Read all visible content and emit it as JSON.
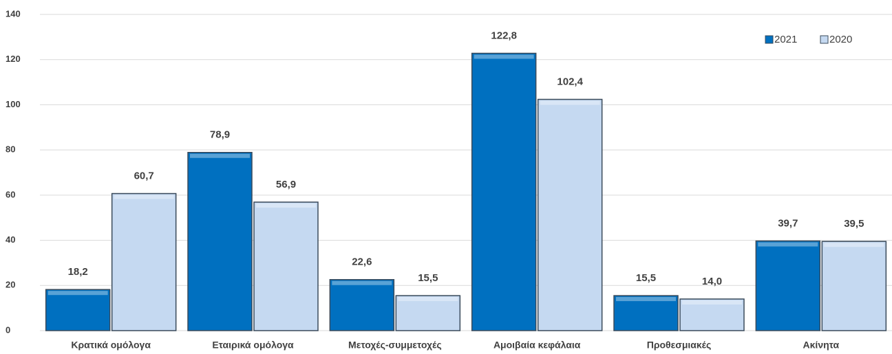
{
  "chart_data": {
    "type": "bar",
    "categories": [
      "Κρατικά ομόλογα",
      "Εταιρικά ομόλογα",
      "Μετοχές-συμμετοχές",
      "Αμοιβαία κεφάλαια",
      "Προθεσμιακές",
      "Ακίνητα"
    ],
    "series": [
      {
        "name": "2021",
        "color": "#0070c0",
        "values": [
          18.2,
          78.9,
          22.6,
          122.8,
          15.5,
          39.7
        ],
        "value_labels": [
          "18,2",
          "78,9",
          "22,6",
          "122,8",
          "15,5",
          "39,7"
        ]
      },
      {
        "name": "2020",
        "color": "#c5d9f1",
        "values": [
          60.7,
          56.9,
          15.5,
          102.4,
          14.0,
          39.5
        ],
        "value_labels": [
          "60,7",
          "56,9",
          "15,5",
          "102,4",
          "14,0",
          "39,5"
        ]
      }
    ],
    "ylim": [
      0,
      140
    ],
    "yticks": [
      0,
      20,
      40,
      60,
      80,
      100,
      120,
      140
    ],
    "grid": true,
    "legend": "top-right"
  }
}
